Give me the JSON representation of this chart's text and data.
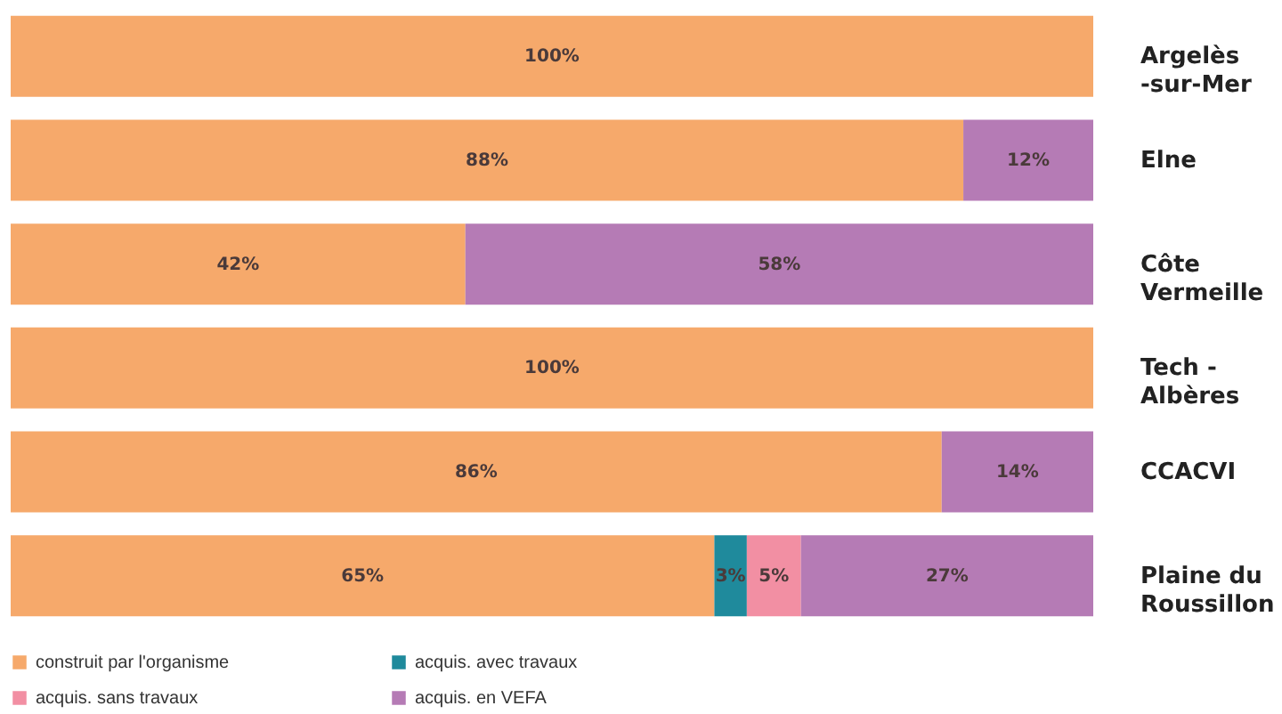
{
  "chart_data": {
    "type": "bar",
    "orientation": "horizontal",
    "stacked": true,
    "legend": "bottom",
    "categories": [
      "Argelès\n-sur-Mer",
      "Elne",
      "Côte\nVermeille",
      "Tech -\nAlbères",
      "CCACVI",
      "Plaine du\nRoussillon"
    ],
    "series": [
      {
        "name": "construit par l'organisme",
        "color": "#f6a96b",
        "values": [
          100,
          88,
          42,
          100,
          86,
          65
        ],
        "value_labels": [
          "100%",
          "88%",
          "42%",
          "100%",
          "86%",
          "65%"
        ]
      },
      {
        "name": "acquis. avec travaux",
        "color": "#1f8a9c",
        "values": [
          null,
          null,
          null,
          null,
          null,
          3
        ],
        "value_labels": [
          null,
          null,
          null,
          null,
          null,
          "3%"
        ]
      },
      {
        "name": "acquis. sans travaux",
        "color": "#f28fa3",
        "values": [
          null,
          null,
          null,
          null,
          null,
          5
        ],
        "value_labels": [
          null,
          null,
          null,
          null,
          null,
          "5%"
        ]
      },
      {
        "name": "acquis. en VEFA",
        "color": "#b57bb5",
        "values": [
          null,
          12,
          58,
          null,
          14,
          27
        ],
        "value_labels": [
          null,
          "12%",
          "58%",
          null,
          "14%",
          "27%"
        ]
      }
    ]
  }
}
